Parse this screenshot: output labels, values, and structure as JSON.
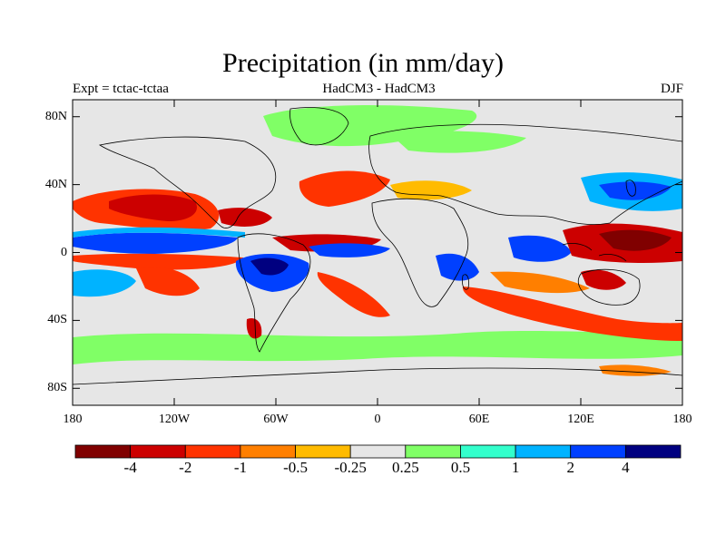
{
  "title": "Precipitation (in mm/day)",
  "subtitle_left": "Expt = tctac-tctaa",
  "subtitle_center": "HadCM3 - HadCM3",
  "subtitle_right": "DJF",
  "map": {
    "projection": "cylindrical-equidistant",
    "lon_range": [
      -180,
      180
    ],
    "lat_range": [
      -90,
      90
    ],
    "land_mask_color": "#e6e6e6",
    "coastline_color": "#000000",
    "lat_ticks": [
      {
        "lat": 80,
        "label": "80N"
      },
      {
        "lat": 40,
        "label": "40N"
      },
      {
        "lat": 0,
        "label": "0"
      },
      {
        "lat": -40,
        "label": "40S"
      },
      {
        "lat": -80,
        "label": "80S"
      }
    ],
    "lon_ticks": [
      {
        "lon": -180,
        "label": "180"
      },
      {
        "lon": -120,
        "label": "120W"
      },
      {
        "lon": -60,
        "label": "60W"
      },
      {
        "lon": 0,
        "label": "0"
      },
      {
        "lon": 60,
        "label": "60E"
      },
      {
        "lon": 120,
        "label": "120E"
      },
      {
        "lon": 180,
        "label": "180"
      }
    ]
  },
  "colorbar": {
    "colors": [
      "#800000",
      "#cc0000",
      "#ff3300",
      "#ff7f00",
      "#ffbb00",
      "#e6e6e6",
      "#80ff66",
      "#33ffcc",
      "#00b3ff",
      "#0040ff",
      "#000080"
    ],
    "levels": [
      "-4",
      "-2",
      "-1",
      "-0.5",
      "-0.25",
      "0.25",
      "0.5",
      "1",
      "2",
      "4"
    ]
  }
}
